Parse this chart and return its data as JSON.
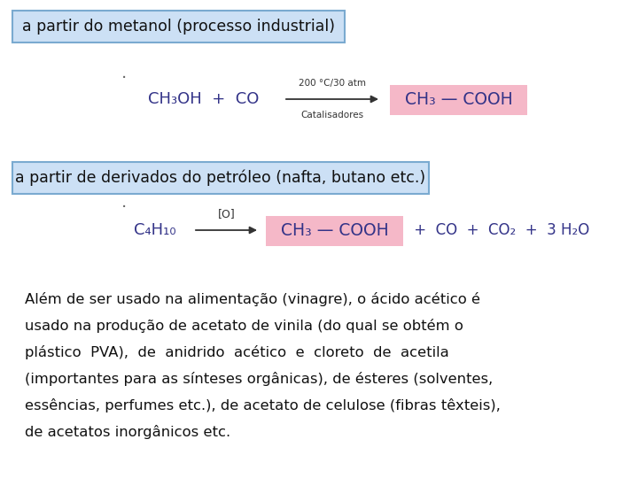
{
  "bg_color": "#ffffff",
  "box1_text": "a partir do metanol (processo industrial)",
  "box2_text": "a partir de derivados do petróleo (nafta, butano etc.)",
  "box_bg": "#cce0f5",
  "box_border": "#7aaad0",
  "reaction1_left": "CH₃OH  +  CO",
  "reaction1_arrow_top": "200 °C/30 atm",
  "reaction1_arrow_bot": "Catalisadores",
  "reaction1_right": "CH₃ — COOH",
  "reaction1_right_bg": "#f5b8c8",
  "reaction2_left": "C₄H₁₀",
  "reaction2_arrow": "[O]",
  "reaction2_right": "CH₃ — COOH",
  "reaction2_extra1": " +  CO  +  CO₂  +  3 H₂O",
  "reaction2_right_bg": "#f5b8c8",
  "text_color_chem": "#333388",
  "text_color_main": "#111111",
  "text_color_arrow": "#333333",
  "paragraph_line1": "Além de ser usado na alimentação (vinagre), o ácido acético é",
  "paragraph_line2": "usado na produção de acetato de vinila (do qual se obtém o",
  "paragraph_line3": "plástico  PVA),  de  anidrido  acético  e  cloreto  de  acetila",
  "paragraph_line4": "(importantes para as sínteses orgânicas), de ésteres (solventes,",
  "paragraph_line5": "essências, perfumes etc.), de acetato de celulose (fibras têxteis),",
  "paragraph_line6": "de acetatos inorgânicos etc."
}
